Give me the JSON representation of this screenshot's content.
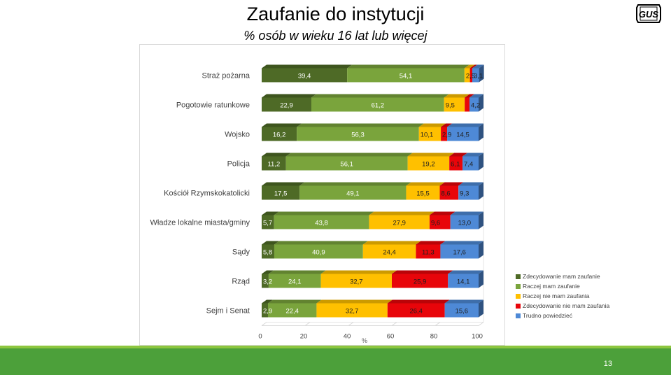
{
  "header": {
    "title": "Zaufanie do instytucji",
    "subtitle": "% osób w wieku 16 lat lub więcej",
    "logo_text": "GUS"
  },
  "footer": {
    "page_number": "13"
  },
  "colors": {
    "zdecydowanie_mam": "#4e6a26",
    "raczej_mam": "#7aa43c",
    "raczej_nie_mam": "#ffc000",
    "zdecydowanie_nie_mam": "#e8050a",
    "trudno": "#4e89d6",
    "footer": "#4ca03a"
  },
  "chart_data": {
    "type": "bar",
    "orientation": "horizontal",
    "stacked": true,
    "xlabel": "%",
    "xlim": [
      0,
      100
    ],
    "xticks": [
      "0",
      "20",
      "40",
      "60",
      "80",
      "100"
    ],
    "legend_position": "right",
    "categories": [
      "Straż pożarna",
      "Pogotowie ratunkowe",
      "Wojsko",
      "Policja",
      "Kościół Rzymskokatolicki",
      "Władze lokalne miasta/gminy",
      "Sądy",
      "Rząd",
      "Sejm i Senat"
    ],
    "series": [
      {
        "name": "Zdecydowanie mam zaufanie",
        "color": "#4e6a26",
        "values": [
          39.4,
          22.9,
          16.2,
          11.2,
          17.5,
          5.7,
          5.8,
          3.2,
          2.9
        ],
        "labels": [
          "39,4",
          "22,9",
          "16,2",
          "11,2",
          "17,5",
          "5,7",
          "5,8",
          "3,2",
          "2,9"
        ]
      },
      {
        "name": "Raczej mam zaufanie",
        "color": "#7aa43c",
        "values": [
          54.1,
          61.2,
          56.3,
          56.1,
          49.1,
          43.8,
          40.9,
          24.1,
          22.4
        ],
        "labels": [
          "54,1",
          "61,2",
          "56,3",
          "56,1",
          "49,1",
          "43,8",
          "40,9",
          "24,1",
          "22,4"
        ]
      },
      {
        "name": "Raczej nie mam zaufania",
        "color": "#ffc000",
        "values": [
          2.5,
          9.5,
          10.1,
          19.2,
          15.5,
          27.9,
          24.4,
          32.7,
          32.7
        ],
        "labels": [
          "2,5",
          "9,5",
          "10,1",
          "19,2",
          "15,5",
          "27,9",
          "24,4",
          "32,7",
          "32,7"
        ]
      },
      {
        "name": "Zdecydowanie nie mam zaufania",
        "color": "#e8050a",
        "values": [
          1.1,
          2.2,
          2.9,
          6.1,
          8.6,
          9.6,
          11.3,
          25.9,
          26.4
        ],
        "labels": [
          "",
          "",
          "2,9",
          "6,1",
          "8,6",
          "9,6",
          "11,3",
          "25,9",
          "26,4"
        ]
      },
      {
        "name": "Trudno powiedzieć",
        "color": "#4e89d6",
        "values": [
          3.1,
          4.2,
          14.5,
          7.4,
          9.3,
          13.0,
          17.6,
          14.1,
          15.6
        ],
        "labels": [
          "3,1",
          "4,2",
          "14,5",
          "7,4",
          "9,3",
          "13,0",
          "17,6",
          "14,1",
          "15,6"
        ]
      }
    ]
  }
}
